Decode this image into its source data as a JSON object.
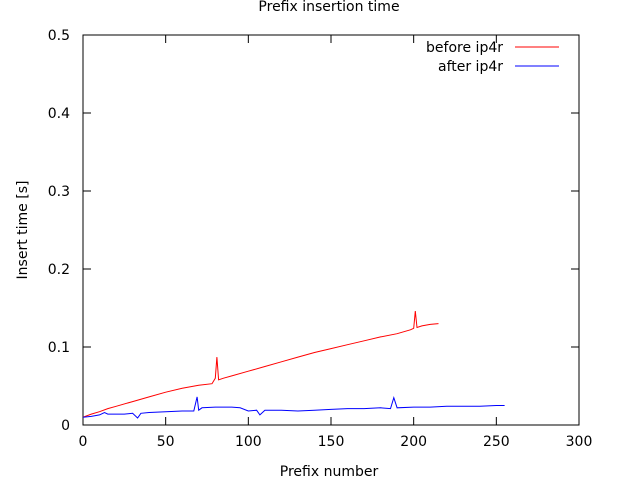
{
  "chart_data": {
    "type": "line",
    "title": "Prefix insertion time",
    "xlabel": "Prefix number",
    "ylabel": "Insert time [s]",
    "xlim": [
      0,
      300
    ],
    "ylim": [
      0,
      0.5
    ],
    "x_ticks": [
      0,
      50,
      100,
      150,
      200,
      250,
      300
    ],
    "y_ticks": [
      0,
      0.1,
      0.2,
      0.3,
      0.4,
      0.5
    ],
    "x_tick_labels": [
      "0",
      "50",
      "100",
      "150",
      "200",
      "250",
      "300"
    ],
    "y_tick_labels": [
      "0",
      "0.1",
      "0.2",
      "0.3",
      "0.4",
      "0.5"
    ],
    "grid": false,
    "legend_position": "top-right",
    "series": [
      {
        "name": "before ip4r",
        "color": "#ff0000",
        "x": [
          0,
          5,
          10,
          15,
          20,
          30,
          40,
          50,
          60,
          70,
          78,
          80,
          81,
          82,
          85,
          90,
          100,
          110,
          120,
          130,
          140,
          150,
          160,
          170,
          180,
          190,
          198,
          200,
          201,
          202,
          205,
          210,
          215
        ],
        "y": [
          0.01,
          0.014,
          0.017,
          0.021,
          0.024,
          0.03,
          0.036,
          0.042,
          0.047,
          0.051,
          0.053,
          0.06,
          0.087,
          0.058,
          0.06,
          0.063,
          0.069,
          0.075,
          0.081,
          0.087,
          0.093,
          0.098,
          0.103,
          0.108,
          0.113,
          0.117,
          0.122,
          0.124,
          0.146,
          0.125,
          0.127,
          0.129,
          0.13
        ]
      },
      {
        "name": "after ip4r",
        "color": "#0000ff",
        "x": [
          0,
          5,
          10,
          13,
          15,
          20,
          25,
          30,
          33,
          35,
          40,
          50,
          60,
          67,
          69,
          70,
          72,
          80,
          90,
          95,
          100,
          105,
          107,
          110,
          120,
          130,
          140,
          150,
          160,
          170,
          180,
          186,
          188,
          190,
          200,
          210,
          220,
          230,
          240,
          250,
          255
        ],
        "y": [
          0.01,
          0.011,
          0.013,
          0.016,
          0.014,
          0.014,
          0.014,
          0.015,
          0.009,
          0.015,
          0.016,
          0.017,
          0.018,
          0.018,
          0.036,
          0.019,
          0.022,
          0.023,
          0.023,
          0.022,
          0.018,
          0.019,
          0.013,
          0.019,
          0.019,
          0.018,
          0.019,
          0.02,
          0.021,
          0.021,
          0.022,
          0.021,
          0.035,
          0.022,
          0.023,
          0.023,
          0.024,
          0.024,
          0.024,
          0.025,
          0.025
        ]
      }
    ]
  }
}
